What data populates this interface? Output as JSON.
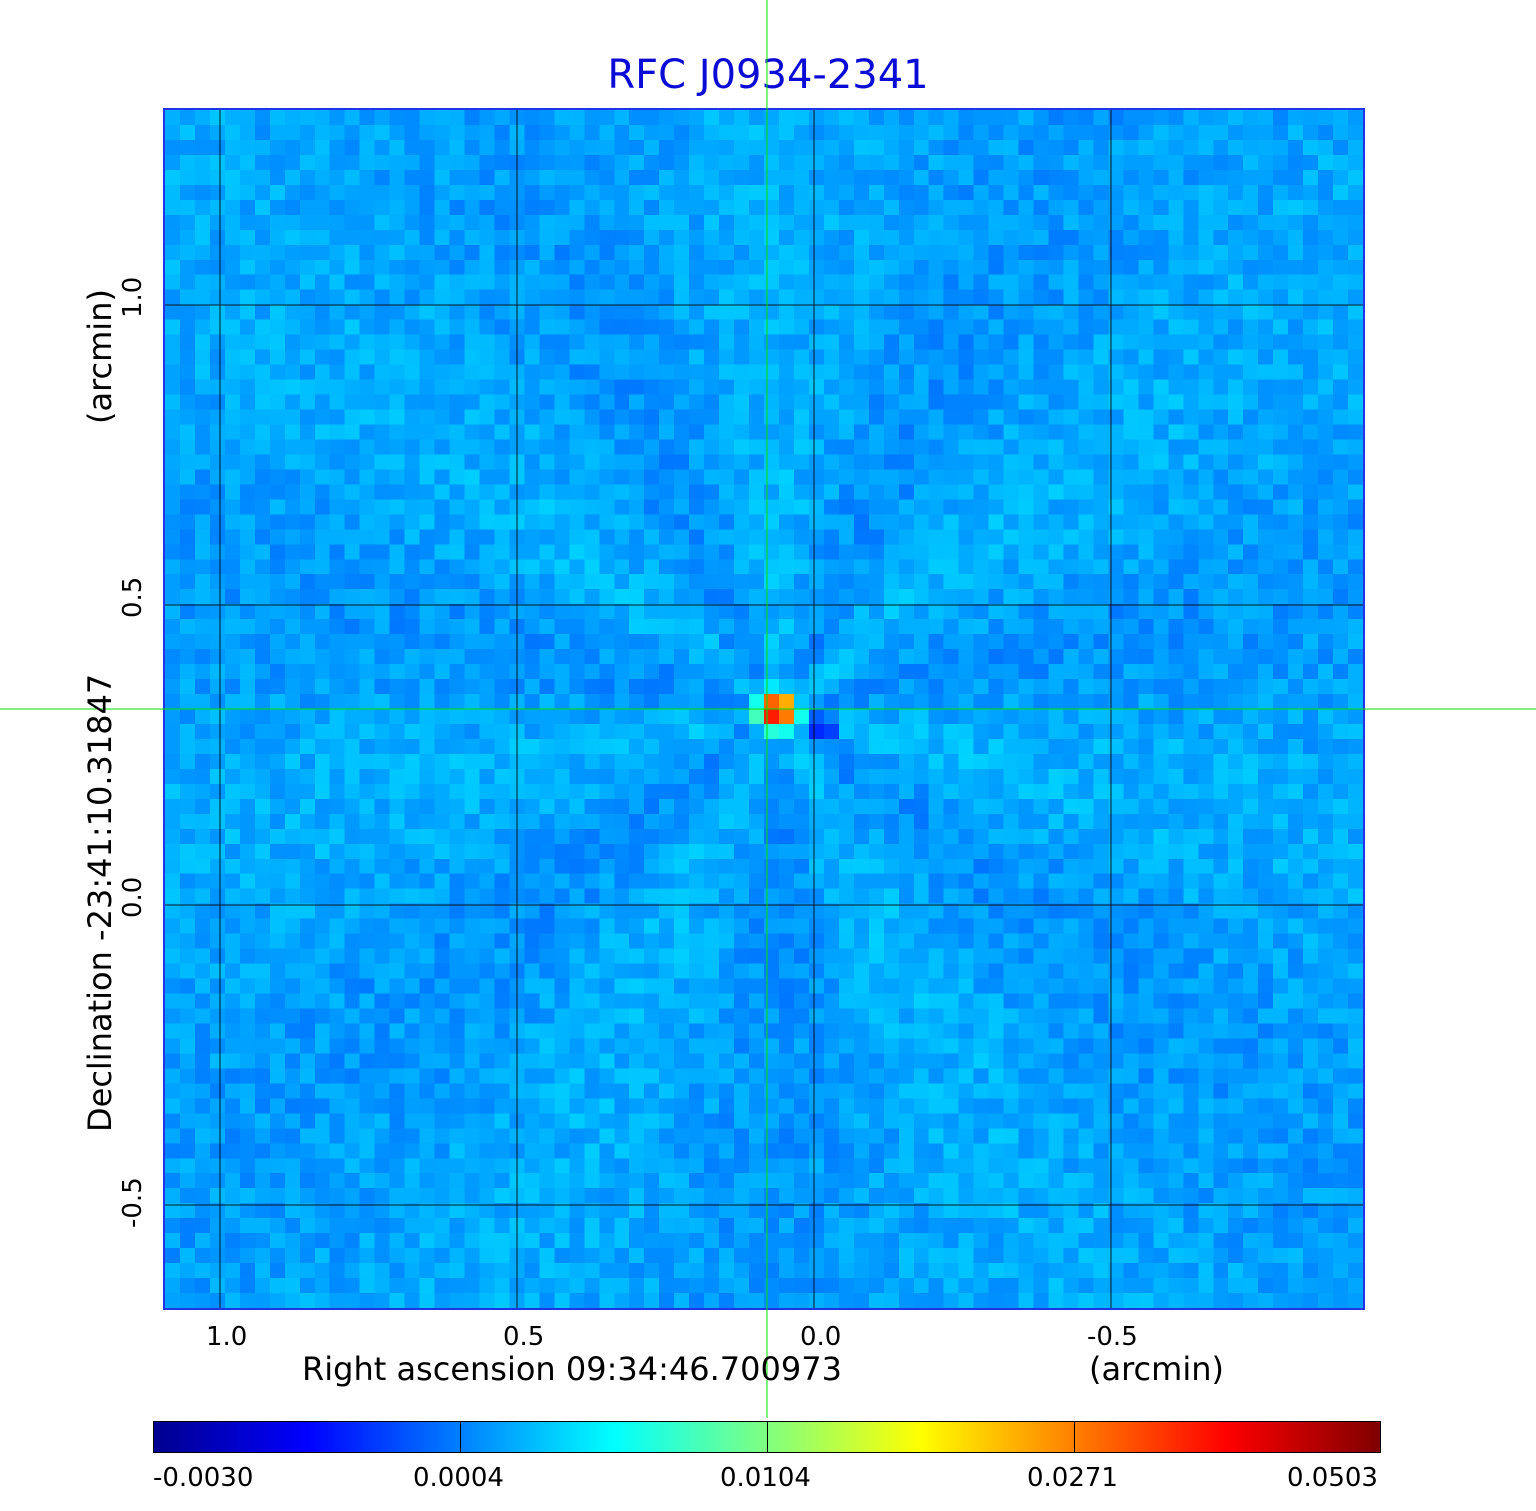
{
  "title": "RFC J0934-2341",
  "x_axis": {
    "label": "Right ascension  09:34:46.700973",
    "unit": "(arcmin)",
    "ticks": [
      "1.0",
      "0.5",
      "0.0",
      "-0.5"
    ]
  },
  "y_axis": {
    "label": "Declination  -23:41:10.31847",
    "unit": "(arcmin)",
    "ticks": [
      "1.0",
      "0.5",
      "0.0",
      "-0.5"
    ]
  },
  "colorbar": {
    "colormap": "jet",
    "ticks": [
      "-0.0030",
      "0.0004",
      "0.0104",
      "0.0271",
      "0.0503"
    ]
  },
  "colors": {
    "title": "#0b0bd6",
    "frame": "#1f35e8",
    "background_flux": "#1e7ff5",
    "crosshair": "#00e000",
    "grid": "#000000"
  }
}
